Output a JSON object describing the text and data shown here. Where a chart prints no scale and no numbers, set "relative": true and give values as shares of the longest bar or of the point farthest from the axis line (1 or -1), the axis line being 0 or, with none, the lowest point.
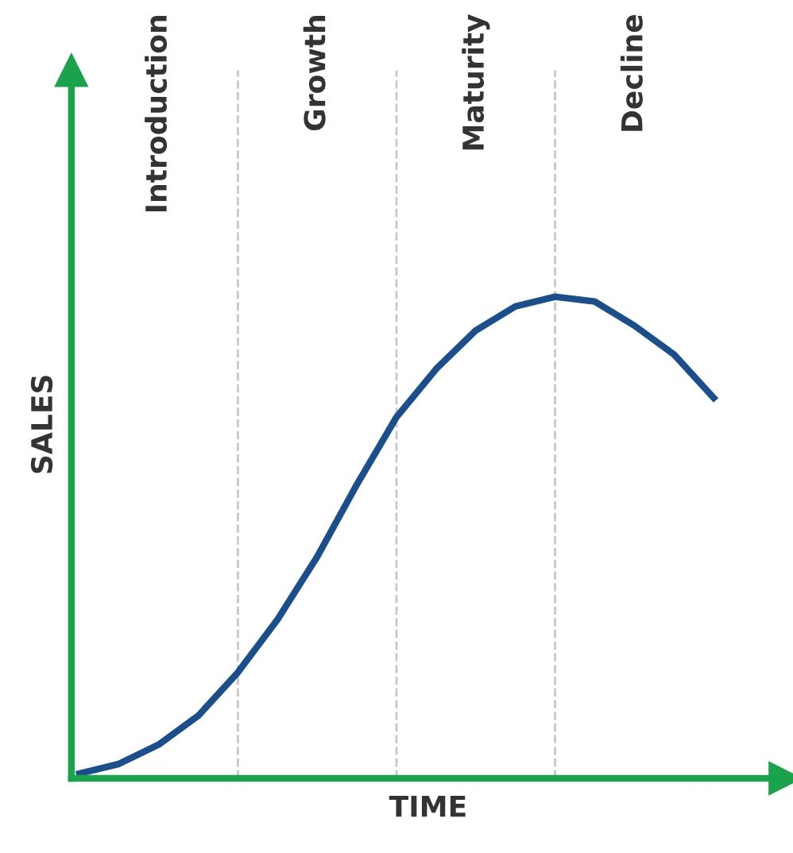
{
  "chart_data": {
    "type": "line",
    "relative": true,
    "xlabel": "TIME",
    "ylabel": "SALES",
    "categories": [
      null,
      null,
      null,
      null,
      null,
      null,
      null,
      null,
      null,
      null,
      null,
      null,
      null,
      null,
      null,
      null,
      null
    ],
    "series": [
      {
        "color": "#1a4f8b",
        "values": [
          0.01,
          0.03,
          0.07,
          0.13,
          0.22,
          0.33,
          0.46,
          0.61,
          0.75,
          0.85,
          0.93,
          0.98,
          1.0,
          0.99,
          0.94,
          0.88,
          0.79
        ]
      }
    ],
    "annotations": [
      "Introduction",
      "Growth",
      "Maturity",
      "Decline"
    ],
    "grid": "x",
    "marker": "none",
    "line_style": "solid"
  }
}
